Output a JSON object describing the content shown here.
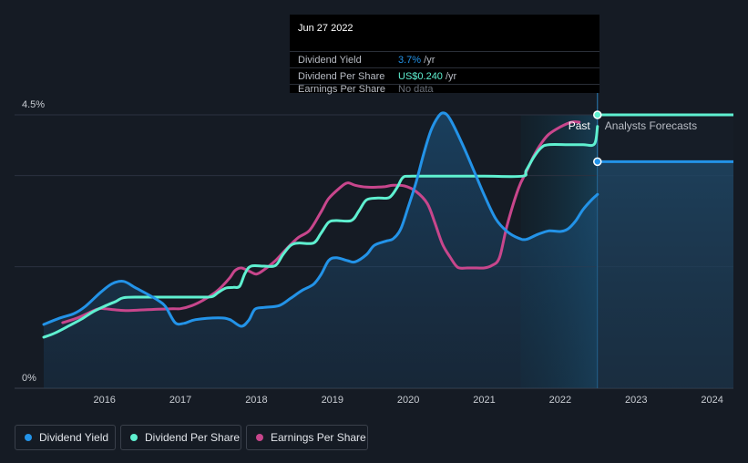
{
  "colors": {
    "background": "#151b24",
    "dividend_yield": "#2393e8",
    "dividend_per_share": "#5ff0d0",
    "earnings_per_share": "#c8468c",
    "grid": "#2b3240",
    "axis_text": "#c8ccd2",
    "forecast_text": "#b8bcc4"
  },
  "tooltip": {
    "date": "Jun 27 2022",
    "rows": [
      {
        "label": "Dividend Yield",
        "value": "3.7%",
        "unit": " /yr",
        "color": "#2393e8"
      },
      {
        "label": "Dividend Per Share",
        "value": "US$0.240",
        "unit": " /yr",
        "color": "#5ff0d0"
      },
      {
        "label": "Earnings Per Share",
        "value": "No data",
        "unit": "",
        "color": "#6a707a"
      }
    ]
  },
  "chart_data": {
    "type": "line",
    "title": "",
    "xlabel": "",
    "ylabel": "",
    "y_tick_labels": [
      "4.5%",
      "0%"
    ],
    "ylim": [
      0,
      4.5
    ],
    "xlim": [
      2015.2,
      2024.28
    ],
    "x_ticks": [
      2016,
      2017,
      2018,
      2019,
      2020,
      2021,
      2022,
      2023,
      2024
    ],
    "x_tick_labels": [
      "2016",
      "2017",
      "2018",
      "2019",
      "2020",
      "2021",
      "2022",
      "2023",
      "2024"
    ],
    "past_label": "Past",
    "forecast_label": "Analysts Forecasts",
    "forecast_start": 2021.48,
    "cursor_x": 2022.49,
    "series": [
      {
        "name": "Dividend Yield",
        "key": "dividend_yield",
        "points": [
          [
            2015.2,
            1.05
          ],
          [
            2015.4,
            1.15
          ],
          [
            2015.6,
            1.23
          ],
          [
            2015.75,
            1.35
          ],
          [
            2015.95,
            1.58
          ],
          [
            2016.1,
            1.72
          ],
          [
            2016.25,
            1.76
          ],
          [
            2016.4,
            1.66
          ],
          [
            2016.55,
            1.56
          ],
          [
            2016.7,
            1.45
          ],
          [
            2016.8,
            1.35
          ],
          [
            2016.93,
            1.08
          ],
          [
            2017.05,
            1.07
          ],
          [
            2017.2,
            1.13
          ],
          [
            2017.5,
            1.16
          ],
          [
            2017.65,
            1.13
          ],
          [
            2017.8,
            1.02
          ],
          [
            2017.9,
            1.12
          ],
          [
            2017.98,
            1.3
          ],
          [
            2018.1,
            1.33
          ],
          [
            2018.3,
            1.36
          ],
          [
            2018.45,
            1.48
          ],
          [
            2018.6,
            1.61
          ],
          [
            2018.75,
            1.71
          ],
          [
            2018.85,
            1.87
          ],
          [
            2018.95,
            2.1
          ],
          [
            2019.05,
            2.15
          ],
          [
            2019.2,
            2.1
          ],
          [
            2019.3,
            2.08
          ],
          [
            2019.45,
            2.2
          ],
          [
            2019.55,
            2.35
          ],
          [
            2019.7,
            2.42
          ],
          [
            2019.8,
            2.46
          ],
          [
            2019.9,
            2.62
          ],
          [
            2020.0,
            2.99
          ],
          [
            2020.1,
            3.38
          ],
          [
            2020.2,
            3.85
          ],
          [
            2020.3,
            4.25
          ],
          [
            2020.4,
            4.48
          ],
          [
            2020.47,
            4.53
          ],
          [
            2020.55,
            4.43
          ],
          [
            2020.7,
            4.05
          ],
          [
            2020.85,
            3.62
          ],
          [
            2021.0,
            3.18
          ],
          [
            2021.15,
            2.79
          ],
          [
            2021.3,
            2.58
          ],
          [
            2021.45,
            2.47
          ],
          [
            2021.55,
            2.45
          ],
          [
            2021.7,
            2.53
          ],
          [
            2021.85,
            2.59
          ],
          [
            2022.0,
            2.58
          ],
          [
            2022.1,
            2.62
          ],
          [
            2022.2,
            2.75
          ],
          [
            2022.3,
            2.94
          ],
          [
            2022.42,
            3.11
          ],
          [
            2022.49,
            3.19
          ]
        ]
      },
      {
        "name": "Dividend Per Share",
        "key": "dividend_per_share",
        "points": [
          [
            2015.2,
            0.84
          ],
          [
            2015.35,
            0.91
          ],
          [
            2015.55,
            1.04
          ],
          [
            2015.7,
            1.14
          ],
          [
            2015.85,
            1.26
          ],
          [
            2016.0,
            1.35
          ],
          [
            2016.15,
            1.43
          ],
          [
            2016.25,
            1.49
          ],
          [
            2016.45,
            1.5
          ],
          [
            2016.7,
            1.5
          ],
          [
            2016.95,
            1.5
          ],
          [
            2017.1,
            1.5
          ],
          [
            2017.3,
            1.5
          ],
          [
            2017.42,
            1.51
          ],
          [
            2017.5,
            1.58
          ],
          [
            2017.6,
            1.65
          ],
          [
            2017.7,
            1.66
          ],
          [
            2017.78,
            1.68
          ],
          [
            2017.85,
            1.89
          ],
          [
            2017.93,
            2.01
          ],
          [
            2018.1,
            2.01
          ],
          [
            2018.25,
            2.02
          ],
          [
            2018.35,
            2.2
          ],
          [
            2018.45,
            2.35
          ],
          [
            2018.55,
            2.39
          ],
          [
            2018.75,
            2.39
          ],
          [
            2018.85,
            2.55
          ],
          [
            2018.95,
            2.73
          ],
          [
            2019.05,
            2.76
          ],
          [
            2019.25,
            2.76
          ],
          [
            2019.35,
            2.92
          ],
          [
            2019.45,
            3.1
          ],
          [
            2019.6,
            3.13
          ],
          [
            2019.75,
            3.14
          ],
          [
            2019.85,
            3.3
          ],
          [
            2019.93,
            3.47
          ],
          [
            2020.05,
            3.49
          ],
          [
            2020.5,
            3.49
          ],
          [
            2021.0,
            3.49
          ],
          [
            2021.5,
            3.49
          ],
          [
            2021.55,
            3.58
          ],
          [
            2021.65,
            3.8
          ],
          [
            2021.75,
            3.96
          ],
          [
            2021.85,
            4.01
          ],
          [
            2022.1,
            4.01
          ],
          [
            2022.3,
            4.01
          ],
          [
            2022.45,
            4.02
          ],
          [
            2022.49,
            4.31
          ]
        ]
      },
      {
        "name": "Earnings Per Share",
        "key": "earnings_per_share",
        "points": [
          [
            2015.45,
            1.08
          ],
          [
            2015.65,
            1.16
          ],
          [
            2015.9,
            1.3
          ],
          [
            2016.0,
            1.31
          ],
          [
            2016.15,
            1.29
          ],
          [
            2016.3,
            1.28
          ],
          [
            2016.5,
            1.29
          ],
          [
            2016.7,
            1.3
          ],
          [
            2016.9,
            1.31
          ],
          [
            2017.0,
            1.31
          ],
          [
            2017.15,
            1.36
          ],
          [
            2017.3,
            1.45
          ],
          [
            2017.45,
            1.57
          ],
          [
            2017.55,
            1.68
          ],
          [
            2017.65,
            1.82
          ],
          [
            2017.72,
            1.94
          ],
          [
            2017.8,
            1.98
          ],
          [
            2017.9,
            1.93
          ],
          [
            2018.0,
            1.88
          ],
          [
            2018.1,
            1.95
          ],
          [
            2018.25,
            2.1
          ],
          [
            2018.4,
            2.3
          ],
          [
            2018.55,
            2.48
          ],
          [
            2018.7,
            2.6
          ],
          [
            2018.85,
            2.9
          ],
          [
            2018.95,
            3.12
          ],
          [
            2019.1,
            3.3
          ],
          [
            2019.2,
            3.38
          ],
          [
            2019.3,
            3.34
          ],
          [
            2019.45,
            3.31
          ],
          [
            2019.6,
            3.31
          ],
          [
            2019.7,
            3.32
          ],
          [
            2019.8,
            3.34
          ],
          [
            2019.95,
            3.33
          ],
          [
            2020.1,
            3.24
          ],
          [
            2020.25,
            3.04
          ],
          [
            2020.35,
            2.72
          ],
          [
            2020.45,
            2.37
          ],
          [
            2020.55,
            2.16
          ],
          [
            2020.65,
            1.99
          ],
          [
            2020.78,
            1.98
          ],
          [
            2020.9,
            1.98
          ],
          [
            2021.0,
            1.98
          ],
          [
            2021.1,
            2.02
          ],
          [
            2021.2,
            2.15
          ],
          [
            2021.3,
            2.68
          ],
          [
            2021.45,
            3.29
          ],
          [
            2021.55,
            3.55
          ],
          [
            2021.65,
            3.82
          ],
          [
            2021.75,
            4.03
          ],
          [
            2021.85,
            4.18
          ],
          [
            2022.0,
            4.3
          ],
          [
            2022.15,
            4.38
          ],
          [
            2022.25,
            4.38
          ]
        ]
      }
    ],
    "forecasts": [
      {
        "series": "dividend_per_share",
        "value": 4.5,
        "start": 2022.49,
        "end": 2024.28
      },
      {
        "series": "dividend_yield",
        "value": 3.73,
        "start": 2022.49,
        "end": 2024.28
      }
    ]
  },
  "legend": [
    {
      "label": "Dividend Yield",
      "color": "#2393e8"
    },
    {
      "label": "Dividend Per Share",
      "color": "#5ff0d0"
    },
    {
      "label": "Earnings Per Share",
      "color": "#c8468c"
    }
  ]
}
